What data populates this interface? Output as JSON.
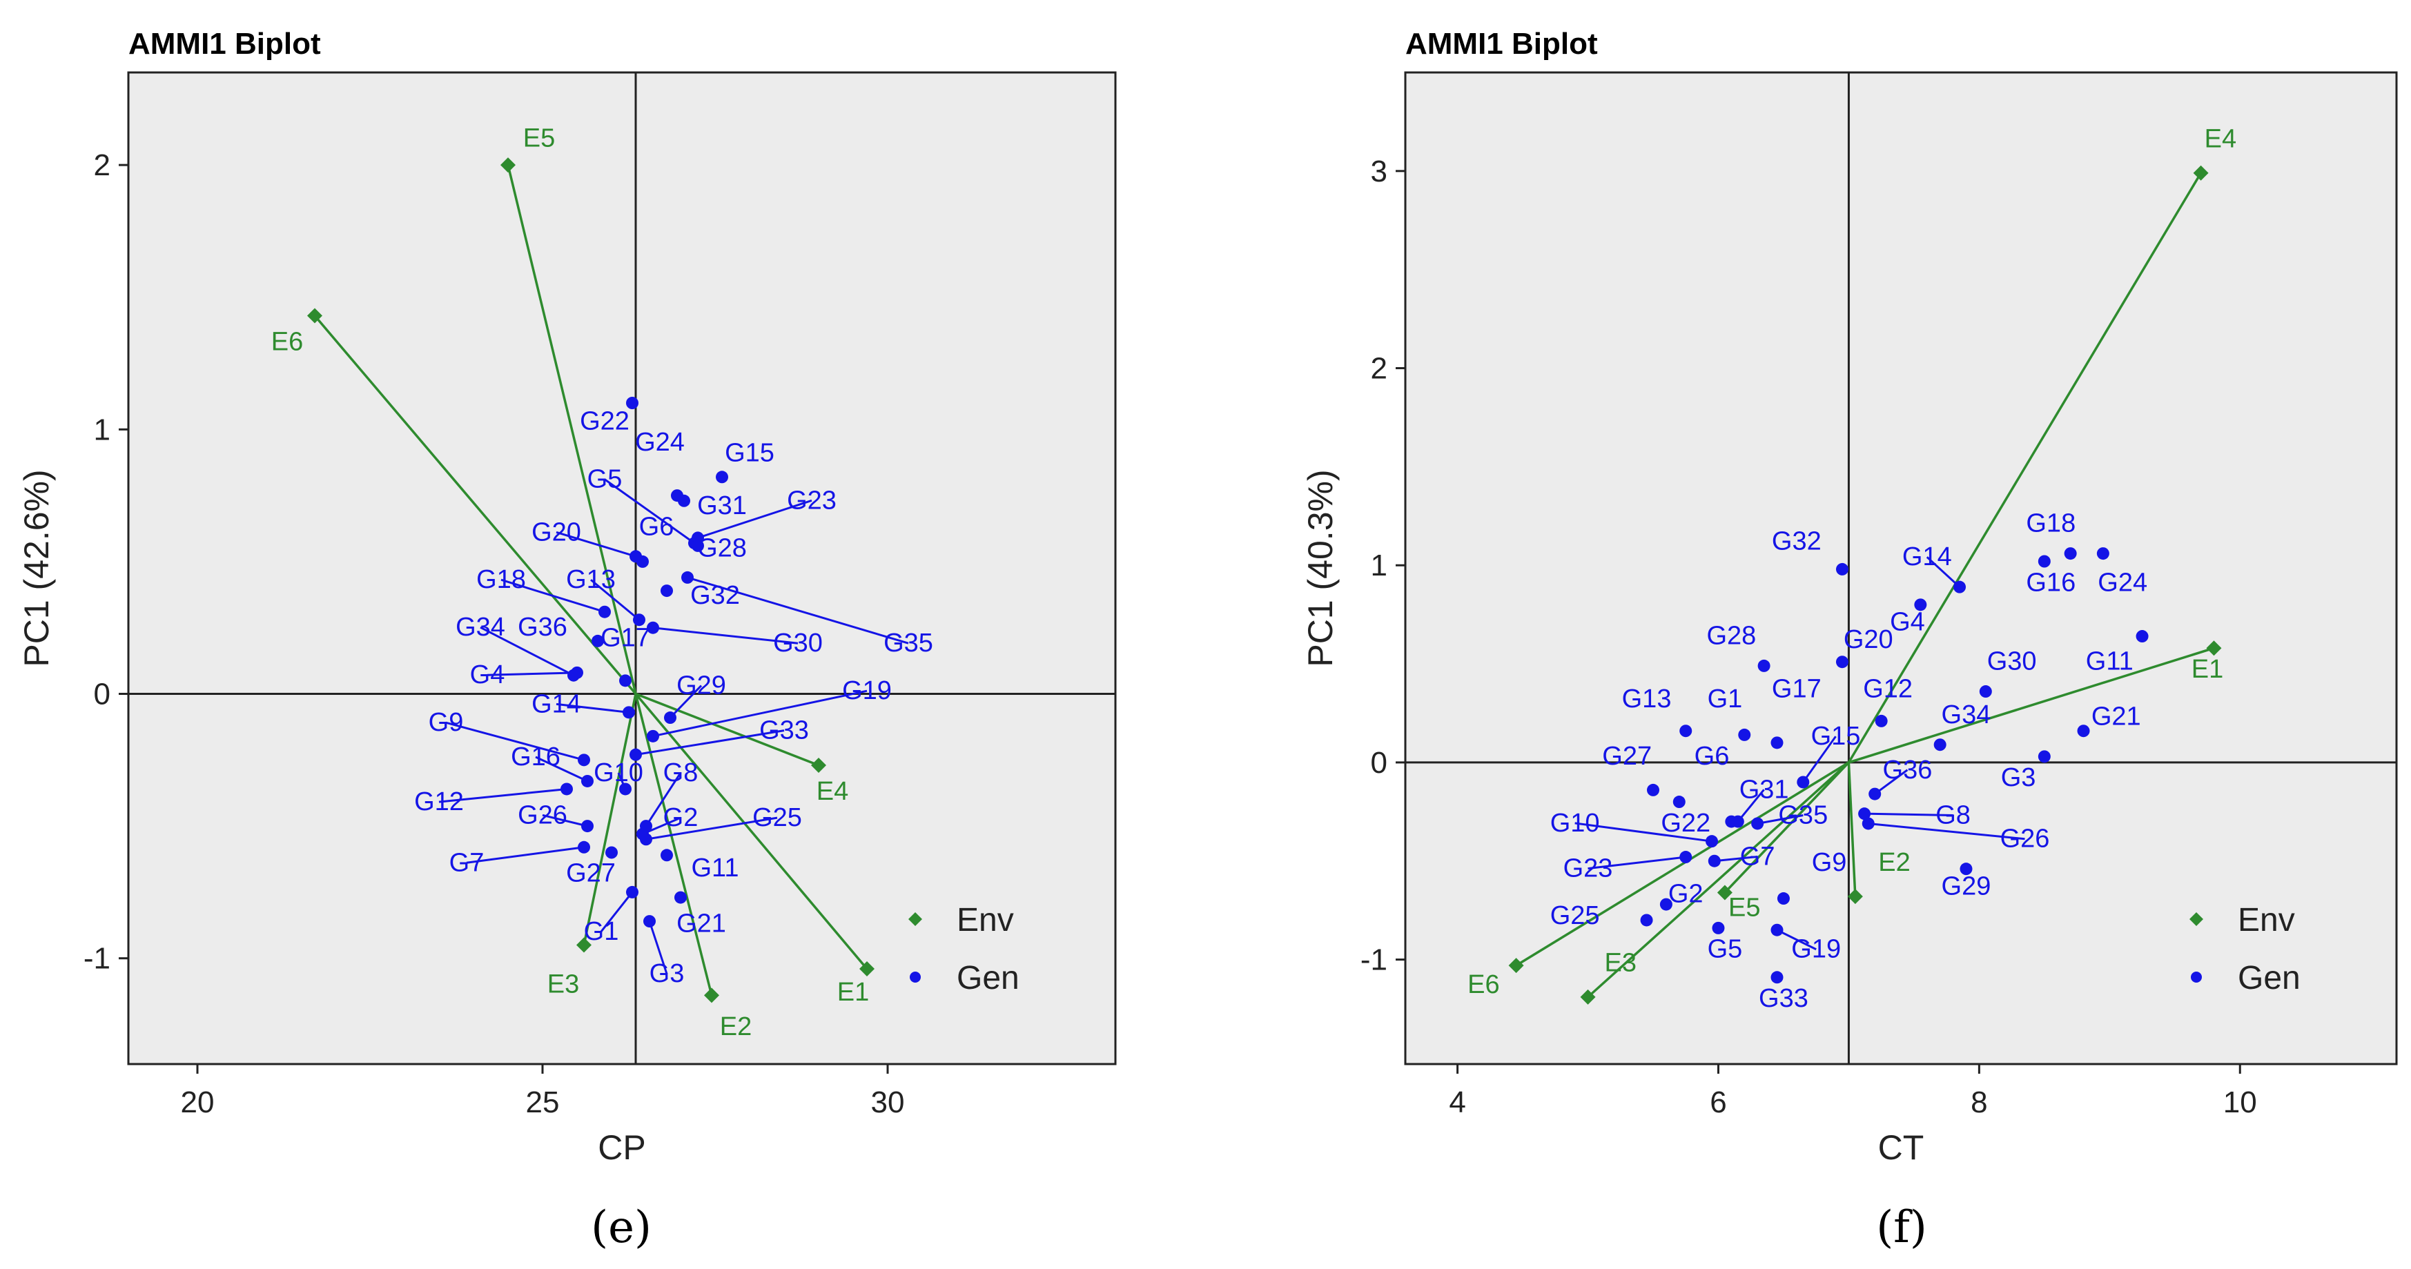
{
  "colors": {
    "env": "#2e8b2e",
    "gen": "#1414e6",
    "panel_bg": "#ececec",
    "axis": "#222222"
  },
  "chart_data": [
    {
      "type": "scatter",
      "title": "AMMI1 Biplot",
      "xlabel": "CP",
      "ylabel": "PC1 (42.6%)",
      "panel_label": "(e)",
      "xlim": [
        19,
        33.3
      ],
      "ylim": [
        -1.4,
        2.35
      ],
      "xticks": [
        20,
        25,
        30
      ],
      "yticks": [
        -1,
        0,
        1,
        2
      ],
      "origin": [
        26.35,
        0
      ],
      "legend": {
        "position": "bottom-right",
        "entries": [
          {
            "name": "Env",
            "marker": "diamond"
          },
          {
            "name": "Gen",
            "marker": "dot"
          }
        ]
      },
      "environments": [
        {
          "name": "E1",
          "x": 29.7,
          "y": -1.04,
          "label": [
            29.5,
            -1.16
          ]
        },
        {
          "name": "E2",
          "x": 27.45,
          "y": -1.14,
          "label": [
            27.8,
            -1.29
          ]
        },
        {
          "name": "E3",
          "x": 25.6,
          "y": -0.95,
          "label": [
            25.3,
            -1.13
          ]
        },
        {
          "name": "E4",
          "x": 29.0,
          "y": -0.27,
          "label": [
            29.2,
            -0.4
          ]
        },
        {
          "name": "E5",
          "x": 24.5,
          "y": 2.0,
          "label": [
            24.95,
            2.07
          ]
        },
        {
          "name": "E6",
          "x": 21.7,
          "y": 1.43,
          "label": [
            21.3,
            1.3
          ]
        }
      ],
      "genotypes": [
        {
          "name": "G22",
          "x": 26.3,
          "y": 1.1,
          "label": [
            25.9,
            1.0
          ],
          "line": false
        },
        {
          "name": "G24",
          "x": 26.95,
          "y": 0.75,
          "label": [
            26.7,
            0.92
          ],
          "line": false
        },
        {
          "name": "G15",
          "x": 27.6,
          "y": 0.82,
          "label": [
            28.0,
            0.88
          ],
          "line": false
        },
        {
          "name": "G5",
          "x": 27.2,
          "y": 0.57,
          "label": [
            25.9,
            0.78
          ],
          "line": true
        },
        {
          "name": "G31",
          "x": 27.05,
          "y": 0.73,
          "label": [
            27.6,
            0.68
          ],
          "line": false
        },
        {
          "name": "G23",
          "x": 27.25,
          "y": 0.59,
          "label": [
            28.9,
            0.7
          ],
          "line": true
        },
        {
          "name": "G6",
          "x": 26.45,
          "y": 0.5,
          "label": [
            26.65,
            0.6
          ],
          "line": false
        },
        {
          "name": "G20",
          "x": 26.35,
          "y": 0.52,
          "label": [
            25.2,
            0.58
          ],
          "line": true
        },
        {
          "name": "G28",
          "x": 27.25,
          "y": 0.56,
          "label": [
            27.6,
            0.52
          ],
          "line": false
        },
        {
          "name": "G13",
          "x": 26.4,
          "y": 0.28,
          "label": [
            25.7,
            0.4
          ],
          "line": true
        },
        {
          "name": "G18",
          "x": 25.9,
          "y": 0.31,
          "label": [
            24.4,
            0.4
          ],
          "line": true
        },
        {
          "name": "G32",
          "x": 26.8,
          "y": 0.39,
          "label": [
            27.5,
            0.34
          ],
          "line": false
        },
        {
          "name": "G30",
          "x": 26.6,
          "y": 0.25,
          "label": [
            28.7,
            0.16
          ],
          "line": true
        },
        {
          "name": "G35",
          "x": 27.1,
          "y": 0.44,
          "label": [
            30.3,
            0.16
          ],
          "line": true
        },
        {
          "name": "G34",
          "x": 25.45,
          "y": 0.07,
          "label": [
            24.1,
            0.22
          ],
          "line": true
        },
        {
          "name": "G36",
          "x": 25.8,
          "y": 0.2,
          "label": [
            25.0,
            0.22
          ],
          "line": false
        },
        {
          "name": "G17",
          "x": 26.2,
          "y": 0.05,
          "label": [
            26.2,
            0.18
          ],
          "line": false
        },
        {
          "name": "G4",
          "x": 25.5,
          "y": 0.08,
          "label": [
            24.2,
            0.04
          ],
          "line": true
        },
        {
          "name": "G29",
          "x": 26.85,
          "y": -0.09,
          "label": [
            27.3,
            0.0
          ],
          "line": true
        },
        {
          "name": "G19",
          "x": 26.6,
          "y": -0.16,
          "label": [
            29.7,
            -0.02
          ],
          "line": true
        },
        {
          "name": "G14",
          "x": 26.25,
          "y": -0.07,
          "label": [
            25.2,
            -0.07
          ],
          "line": true
        },
        {
          "name": "G33",
          "x": 26.35,
          "y": -0.23,
          "label": [
            28.5,
            -0.17
          ],
          "line": true
        },
        {
          "name": "G9",
          "x": 25.6,
          "y": -0.25,
          "label": [
            23.6,
            -0.14
          ],
          "line": true
        },
        {
          "name": "G16",
          "x": 25.65,
          "y": -0.33,
          "label": [
            24.9,
            -0.27
          ],
          "line": true
        },
        {
          "name": "G10",
          "x": 26.2,
          "y": -0.36,
          "label": [
            26.1,
            -0.33
          ],
          "line": true
        },
        {
          "name": "G8",
          "x": 26.5,
          "y": -0.5,
          "label": [
            27.0,
            -0.33
          ],
          "line": true
        },
        {
          "name": "G12",
          "x": 25.35,
          "y": -0.36,
          "label": [
            23.5,
            -0.44
          ],
          "line": true
        },
        {
          "name": "G26",
          "x": 25.65,
          "y": -0.5,
          "label": [
            25.0,
            -0.49
          ],
          "line": true
        },
        {
          "name": "G2",
          "x": 26.45,
          "y": -0.53,
          "label": [
            27.0,
            -0.5
          ],
          "line": true
        },
        {
          "name": "G25",
          "x": 26.5,
          "y": -0.55,
          "label": [
            28.4,
            -0.5
          ],
          "line": true
        },
        {
          "name": "G7",
          "x": 25.6,
          "y": -0.58,
          "label": [
            23.9,
            -0.67
          ],
          "line": true
        },
        {
          "name": "G27",
          "x": 26.0,
          "y": -0.6,
          "label": [
            25.7,
            -0.71
          ],
          "line": false
        },
        {
          "name": "G11",
          "x": 26.8,
          "y": -0.61,
          "label": [
            27.5,
            -0.69
          ],
          "line": false
        },
        {
          "name": "G21",
          "x": 27.0,
          "y": -0.77,
          "label": [
            27.3,
            -0.9
          ],
          "line": false
        },
        {
          "name": "G1",
          "x": 26.3,
          "y": -0.75,
          "label": [
            25.85,
            -0.93
          ],
          "line": true
        },
        {
          "name": "G3",
          "x": 26.55,
          "y": -0.86,
          "label": [
            26.8,
            -1.09
          ],
          "line": true
        }
      ]
    },
    {
      "type": "scatter",
      "title": "AMMI1 Biplot",
      "xlabel": "CT",
      "ylabel": "PC1 (40.3%)",
      "panel_label": "(f)",
      "xlim": [
        3.6,
        11.2
      ],
      "ylim": [
        -1.53,
        3.5
      ],
      "xticks": [
        4,
        6,
        8,
        10
      ],
      "yticks": [
        -1,
        0,
        1,
        2,
        3
      ],
      "origin": [
        7.0,
        0
      ],
      "legend": {
        "position": "bottom-right",
        "entries": [
          {
            "name": "Env",
            "marker": "diamond"
          },
          {
            "name": "Gen",
            "marker": "dot"
          }
        ]
      },
      "environments": [
        {
          "name": "E1",
          "x": 9.8,
          "y": 0.58,
          "label": [
            9.75,
            0.43
          ]
        },
        {
          "name": "E2",
          "x": 7.05,
          "y": -0.68,
          "label": [
            7.35,
            -0.55
          ]
        },
        {
          "name": "E3",
          "x": 5.0,
          "y": -1.19,
          "label": [
            5.25,
            -1.06
          ]
        },
        {
          "name": "E4",
          "x": 9.7,
          "y": 2.99,
          "label": [
            9.85,
            3.12
          ]
        },
        {
          "name": "E5",
          "x": 6.05,
          "y": -0.66,
          "label": [
            6.2,
            -0.78
          ]
        },
        {
          "name": "E6",
          "x": 4.45,
          "y": -1.03,
          "label": [
            4.2,
            -1.17
          ]
        }
      ],
      "genotypes": [
        {
          "name": "G32",
          "x": 6.95,
          "y": 0.98,
          "label": [
            6.6,
            1.08
          ],
          "line": false
        },
        {
          "name": "G14",
          "x": 7.85,
          "y": 0.89,
          "label": [
            7.6,
            1.0
          ],
          "line": true
        },
        {
          "name": "G18",
          "x": 8.7,
          "y": 1.06,
          "label": [
            8.55,
            1.17
          ],
          "line": false
        },
        {
          "name": "G16",
          "x": 8.5,
          "y": 1.02,
          "label": [
            8.55,
            0.87
          ],
          "line": false
        },
        {
          "name": "G24",
          "x": 8.95,
          "y": 1.06,
          "label": [
            9.1,
            0.87
          ],
          "line": false
        },
        {
          "name": "G4",
          "x": 7.55,
          "y": 0.8,
          "label": [
            7.45,
            0.67
          ],
          "line": false
        },
        {
          "name": "G20",
          "x": 6.95,
          "y": 0.51,
          "label": [
            7.15,
            0.58
          ],
          "line": false
        },
        {
          "name": "G28",
          "x": 6.35,
          "y": 0.49,
          "label": [
            6.1,
            0.6
          ],
          "line": false
        },
        {
          "name": "G30",
          "x": 8.05,
          "y": 0.36,
          "label": [
            8.25,
            0.47
          ],
          "line": false
        },
        {
          "name": "G11",
          "x": 9.25,
          "y": 0.64,
          "label": [
            9.0,
            0.47
          ],
          "line": false
        },
        {
          "name": "G12",
          "x": 7.25,
          "y": 0.21,
          "label": [
            7.3,
            0.33
          ],
          "line": false
        },
        {
          "name": "G17",
          "x": 6.45,
          "y": 0.1,
          "label": [
            6.6,
            0.33
          ],
          "line": false
        },
        {
          "name": "G13",
          "x": 5.75,
          "y": 0.16,
          "label": [
            5.45,
            0.28
          ],
          "line": false
        },
        {
          "name": "G1",
          "x": 6.2,
          "y": 0.14,
          "label": [
            6.05,
            0.28
          ],
          "line": false
        },
        {
          "name": "G34",
          "x": 7.7,
          "y": 0.09,
          "label": [
            7.9,
            0.2
          ],
          "line": false
        },
        {
          "name": "G21",
          "x": 8.8,
          "y": 0.16,
          "label": [
            9.05,
            0.19
          ],
          "line": false
        },
        {
          "name": "G15",
          "x": 6.65,
          "y": -0.1,
          "label": [
            6.9,
            0.09
          ],
          "line": true
        },
        {
          "name": "G3",
          "x": 8.5,
          "y": 0.03,
          "label": [
            8.3,
            -0.12
          ],
          "line": false
        },
        {
          "name": "G6",
          "x": 6.1,
          "y": -0.3,
          "label": [
            5.95,
            -0.01
          ],
          "line": false
        },
        {
          "name": "G27",
          "x": 5.5,
          "y": -0.14,
          "label": [
            5.3,
            -0.01
          ],
          "line": false
        },
        {
          "name": "G36",
          "x": 7.2,
          "y": -0.16,
          "label": [
            7.45,
            -0.08
          ],
          "line": true
        },
        {
          "name": "G31",
          "x": 6.15,
          "y": -0.3,
          "label": [
            6.35,
            -0.18
          ],
          "line": true
        },
        {
          "name": "G35",
          "x": 6.3,
          "y": -0.31,
          "label": [
            6.65,
            -0.31
          ],
          "line": true
        },
        {
          "name": "G22",
          "x": 5.7,
          "y": -0.2,
          "label": [
            5.75,
            -0.35
          ],
          "line": false
        },
        {
          "name": "G8",
          "x": 7.12,
          "y": -0.26,
          "label": [
            7.8,
            -0.31
          ],
          "line": true
        },
        {
          "name": "G10",
          "x": 5.95,
          "y": -0.4,
          "label": [
            4.9,
            -0.35
          ],
          "line": true
        },
        {
          "name": "G26",
          "x": 7.15,
          "y": -0.31,
          "label": [
            8.35,
            -0.43
          ],
          "line": true
        },
        {
          "name": "G29",
          "x": 7.9,
          "y": -0.54,
          "label": [
            7.9,
            -0.67
          ],
          "line": false
        },
        {
          "name": "G7",
          "x": 5.97,
          "y": -0.5,
          "label": [
            6.3,
            -0.52
          ],
          "line": true
        },
        {
          "name": "G23",
          "x": 5.75,
          "y": -0.48,
          "label": [
            5.0,
            -0.58
          ],
          "line": true
        },
        {
          "name": "G9",
          "x": 6.5,
          "y": -0.69,
          "label": [
            6.85,
            -0.55
          ],
          "line": false
        },
        {
          "name": "G2",
          "x": 5.6,
          "y": -0.72,
          "label": [
            5.75,
            -0.71
          ],
          "line": false
        },
        {
          "name": "G25",
          "x": 5.45,
          "y": -0.8,
          "label": [
            4.9,
            -0.82
          ],
          "line": false
        },
        {
          "name": "G5",
          "x": 6.0,
          "y": -0.84,
          "label": [
            6.05,
            -0.99
          ],
          "line": false
        },
        {
          "name": "G19",
          "x": 6.45,
          "y": -0.85,
          "label": [
            6.75,
            -0.99
          ],
          "line": true
        },
        {
          "name": "G33",
          "x": 6.45,
          "y": -1.09,
          "label": [
            6.5,
            -1.24
          ],
          "line": false
        }
      ]
    }
  ]
}
